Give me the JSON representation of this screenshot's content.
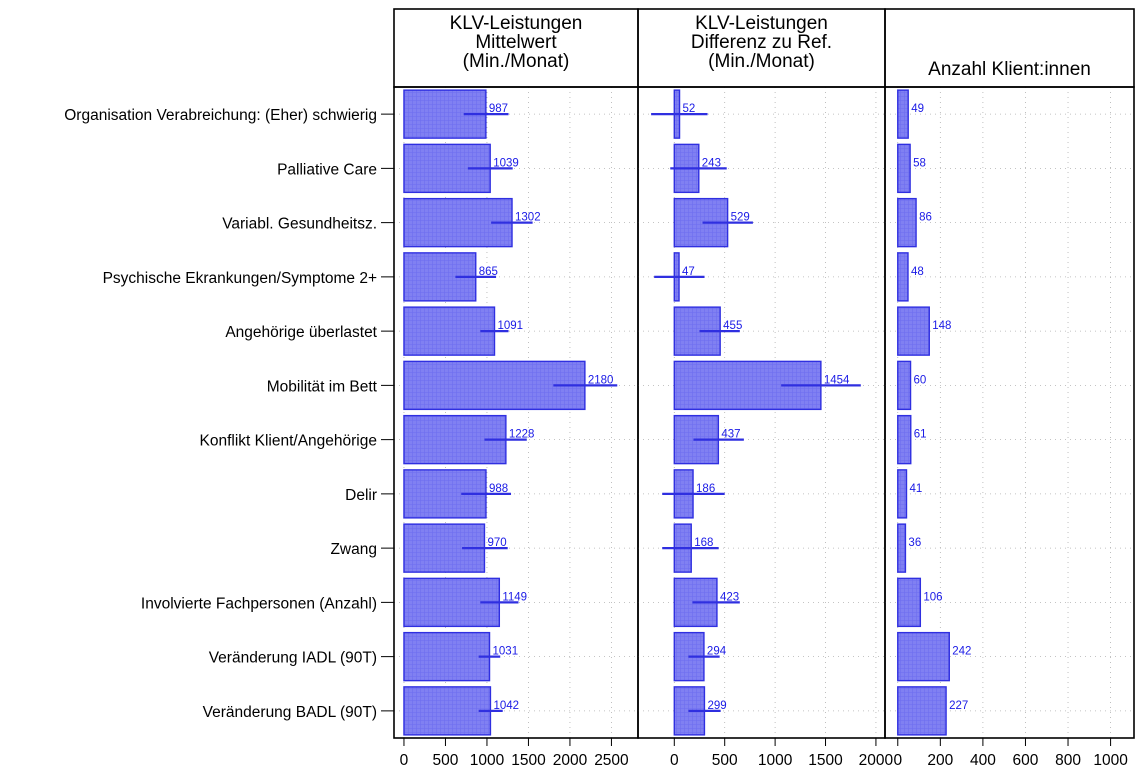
{
  "colors": {
    "bar_fill": "#8080f2",
    "bar_stroke": "#2f2fe0",
    "label": "#1a1ae6",
    "grid": "#b0b0b0",
    "frame": "#000000"
  },
  "panels": [
    {
      "title_lines": [
        "KLV-Leistungen",
        "Mittelwert",
        "(Min./Monat)"
      ],
      "ticks": [
        "0",
        "500",
        "1000",
        "1500",
        "2000",
        "2500"
      ]
    },
    {
      "title_lines": [
        "KLV-Leistungen",
        "Differenz zu Ref.",
        "(Min./Monat)"
      ],
      "ticks": [
        "0",
        "500",
        "1000",
        "1500",
        "2000"
      ]
    },
    {
      "title_lines": [
        "Anzahl Klient:innen"
      ],
      "ticks": [
        "0",
        "200",
        "400",
        "600",
        "800",
        "1000"
      ]
    }
  ],
  "chart_data": [
    {
      "type": "bar",
      "orientation": "horizontal",
      "title": "KLV-Leistungen Mittelwert (Min./Monat)",
      "categories": [
        "Organisation Verabreichung: (Eher) schwierig",
        "Palliative Care",
        "Variabl. Gesundheitsz.",
        "Psychische Ekrankungen/Symptome 2+",
        "Angehörige überlastet",
        "Mobilität im Bett",
        "Konflikt Klient/Angehörige",
        "Delir",
        "Zwang",
        "Involvierte Fachpersonen (Anzahl)",
        "Veränderung IADL (90T)",
        "Veränderung BADL (90T)"
      ],
      "values": [
        987,
        1039,
        1302,
        865,
        1091,
        2180,
        1228,
        988,
        970,
        1149,
        1031,
        1042
      ],
      "value_labels": [
        "987",
        "1039",
        "1302",
        "865",
        "1091",
        "2180",
        "1228",
        "988",
        "970",
        "1149",
        "1031",
        "1042"
      ],
      "error_low": [
        720,
        770,
        1050,
        620,
        920,
        1800,
        970,
        690,
        700,
        920,
        900,
        900
      ],
      "error_high": [
        1260,
        1310,
        1550,
        1110,
        1260,
        2570,
        1480,
        1290,
        1250,
        1380,
        1160,
        1190
      ],
      "xlim": [
        -120,
        2820
      ],
      "grid": true
    },
    {
      "type": "bar",
      "orientation": "horizontal",
      "title": "KLV-Leistungen Differenz zu Ref. (Min./Monat)",
      "values": [
        52,
        243,
        529,
        47,
        455,
        1454,
        437,
        186,
        168,
        423,
        294,
        299
      ],
      "value_labels": [
        "52",
        "243",
        "529",
        "47",
        "455",
        "1454",
        "437",
        "186",
        "168",
        "423",
        "294",
        "299"
      ],
      "error_low": [
        -230,
        -40,
        280,
        -200,
        250,
        1060,
        190,
        -120,
        -120,
        180,
        140,
        140
      ],
      "error_high": [
        330,
        520,
        780,
        300,
        650,
        1850,
        690,
        500,
        440,
        650,
        450,
        460
      ],
      "xlim": [
        -360,
        2090
      ],
      "grid": true
    },
    {
      "type": "bar",
      "orientation": "horizontal",
      "title": "Anzahl Klient:innen",
      "values": [
        49,
        58,
        86,
        48,
        148,
        60,
        61,
        41,
        36,
        106,
        242,
        227
      ],
      "value_labels": [
        "49",
        "58",
        "86",
        "48",
        "148",
        "60",
        "61",
        "41",
        "36",
        "106",
        "242",
        "227"
      ],
      "xlim": [
        -60,
        1110
      ],
      "grid": true
    }
  ]
}
